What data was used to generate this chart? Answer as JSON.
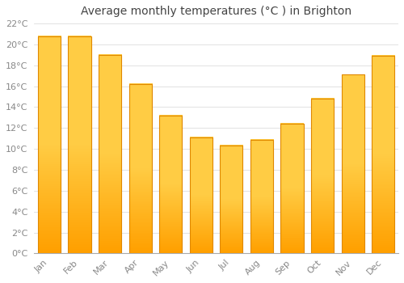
{
  "title": "Average monthly temperatures (°C ) in Brighton",
  "months": [
    "Jan",
    "Feb",
    "Mar",
    "Apr",
    "May",
    "Jun",
    "Jul",
    "Aug",
    "Sep",
    "Oct",
    "Nov",
    "Dec"
  ],
  "values": [
    20.8,
    20.8,
    19.0,
    16.2,
    13.2,
    11.1,
    10.3,
    10.9,
    12.4,
    14.8,
    17.1,
    18.9
  ],
  "bar_color_light": "#FFCC44",
  "bar_color_dark": "#FFA000",
  "bar_edge_color": "#E08800",
  "background_color": "#FFFFFF",
  "grid_color": "#DDDDDD",
  "tick_label_color": "#888888",
  "title_color": "#444444",
  "ylim": [
    0,
    22
  ],
  "ytick_step": 2,
  "title_fontsize": 10,
  "tick_fontsize": 8,
  "bar_width": 0.75
}
